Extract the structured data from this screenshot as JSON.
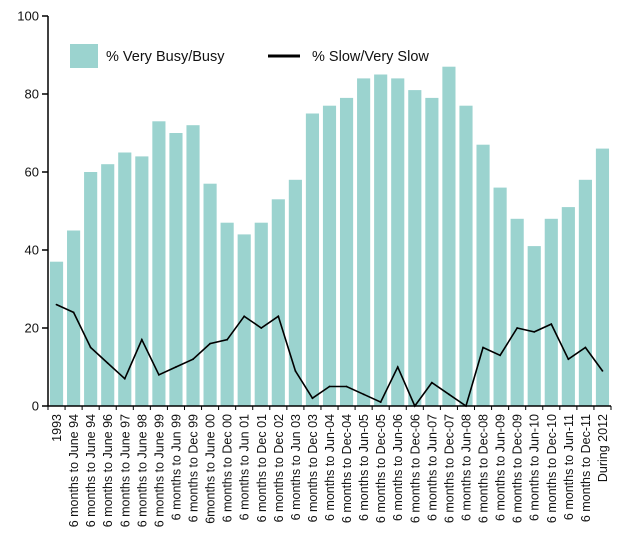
{
  "chart_data": {
    "type": "bar",
    "title": "",
    "xlabel": "",
    "ylabel": "",
    "ylim": [
      0,
      100
    ],
    "yticks": [
      0,
      20,
      40,
      60,
      80,
      100
    ],
    "grid": false,
    "legend_position": "top-left",
    "categories": [
      "1993",
      "6 months to June 94",
      "6 months to June 94",
      "6 months to June 96",
      "6 months to June 97",
      "6 months to June 98",
      "6 months to June 99",
      "6 months to Jun 99",
      "6 months to Dec 99",
      "6months to June 00",
      "6 months to Dec 00",
      "6 months to Jun 01",
      "6 months to Dec 01",
      "6 months to Dec 02",
      "6 months to Jun 03",
      "6 months to Dec 03",
      "6 months to Jun-04",
      "6 months to Dec-04",
      "6 months to Jun-05",
      "6 months to Dec-05",
      "6 months to Jun-06",
      "6 months to Dec-06",
      "6 months to Jun-07",
      "6 months to Dec-07",
      "6 months to Jun-08",
      "6 months to Dec-08",
      "6 months to Jun-09",
      "6 months to Dec-09",
      "6 months to Jun-10",
      "6 months to Dec-10",
      "6 months to Jun-11",
      "6 months to Dec-11",
      "During 2012"
    ],
    "series": [
      {
        "name": "% Very Busy/Busy",
        "kind": "bar",
        "color": "#9bd3cf",
        "values": [
          37,
          45,
          60,
          62,
          65,
          64,
          73,
          70,
          72,
          57,
          47,
          44,
          47,
          53,
          58,
          75,
          77,
          79,
          84,
          85,
          84,
          81,
          79,
          87,
          77,
          67,
          56,
          48,
          41,
          48,
          51,
          58,
          66
        ]
      },
      {
        "name": "% Slow/Very Slow",
        "kind": "line",
        "color": "#000000",
        "values": [
          26,
          24,
          15,
          11,
          7,
          17,
          8,
          10,
          12,
          16,
          17,
          23,
          20,
          23,
          9,
          2,
          5,
          5,
          3,
          1,
          10,
          0,
          6,
          3,
          0,
          15,
          13,
          20,
          19,
          21,
          12,
          15,
          9
        ]
      }
    ]
  }
}
